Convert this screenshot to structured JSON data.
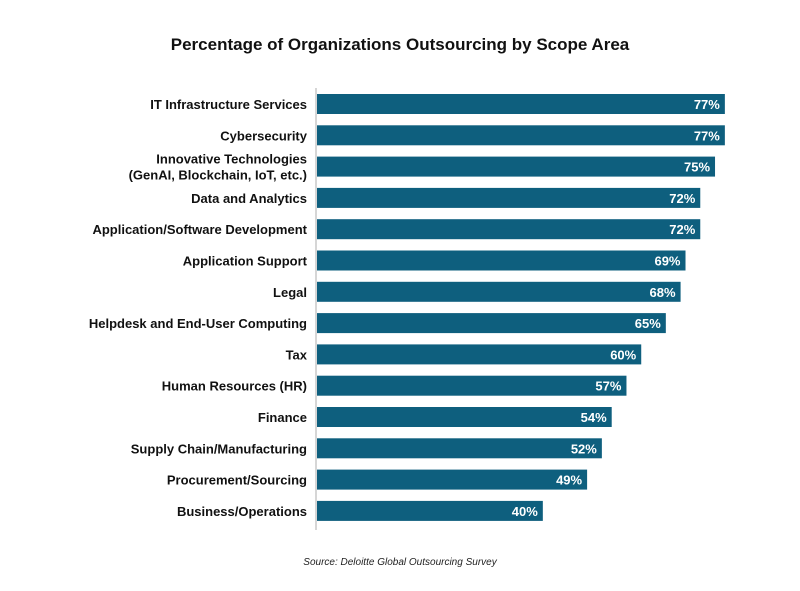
{
  "chart_data": {
    "type": "bar",
    "orientation": "horizontal",
    "title": "Percentage of Organizations Outsourcing by Scope Area",
    "source": "Source: Deloitte Global Outsourcing Survey",
    "categories": [
      [
        "IT Infrastructure Services"
      ],
      [
        "Cybersecurity"
      ],
      [
        "Innovative Technologies",
        "(GenAI, Blockchain, IoT, etc.)"
      ],
      [
        "Data and Analytics"
      ],
      [
        "Application/Software Development"
      ],
      [
        "Application Support"
      ],
      [
        "Legal"
      ],
      [
        "Helpdesk and End-User Computing"
      ],
      [
        "Tax"
      ],
      [
        "Human Resources (HR)"
      ],
      [
        "Finance"
      ],
      [
        "Supply Chain/Manufacturing"
      ],
      [
        "Procurement/Sourcing"
      ],
      [
        "Business/Operations"
      ]
    ],
    "values": [
      77,
      77,
      75,
      72,
      72,
      69,
      68,
      65,
      60,
      57,
      54,
      52,
      49,
      40
    ],
    "value_labels": [
      "77%",
      "77%",
      "75%",
      "72%",
      "72%",
      "69%",
      "68%",
      "65%",
      "60%",
      "57%",
      "54%",
      "52%",
      "49%",
      "40%"
    ],
    "unit": "%",
    "bar_color": "#0e5f7e",
    "grid": false,
    "legend": "none"
  }
}
